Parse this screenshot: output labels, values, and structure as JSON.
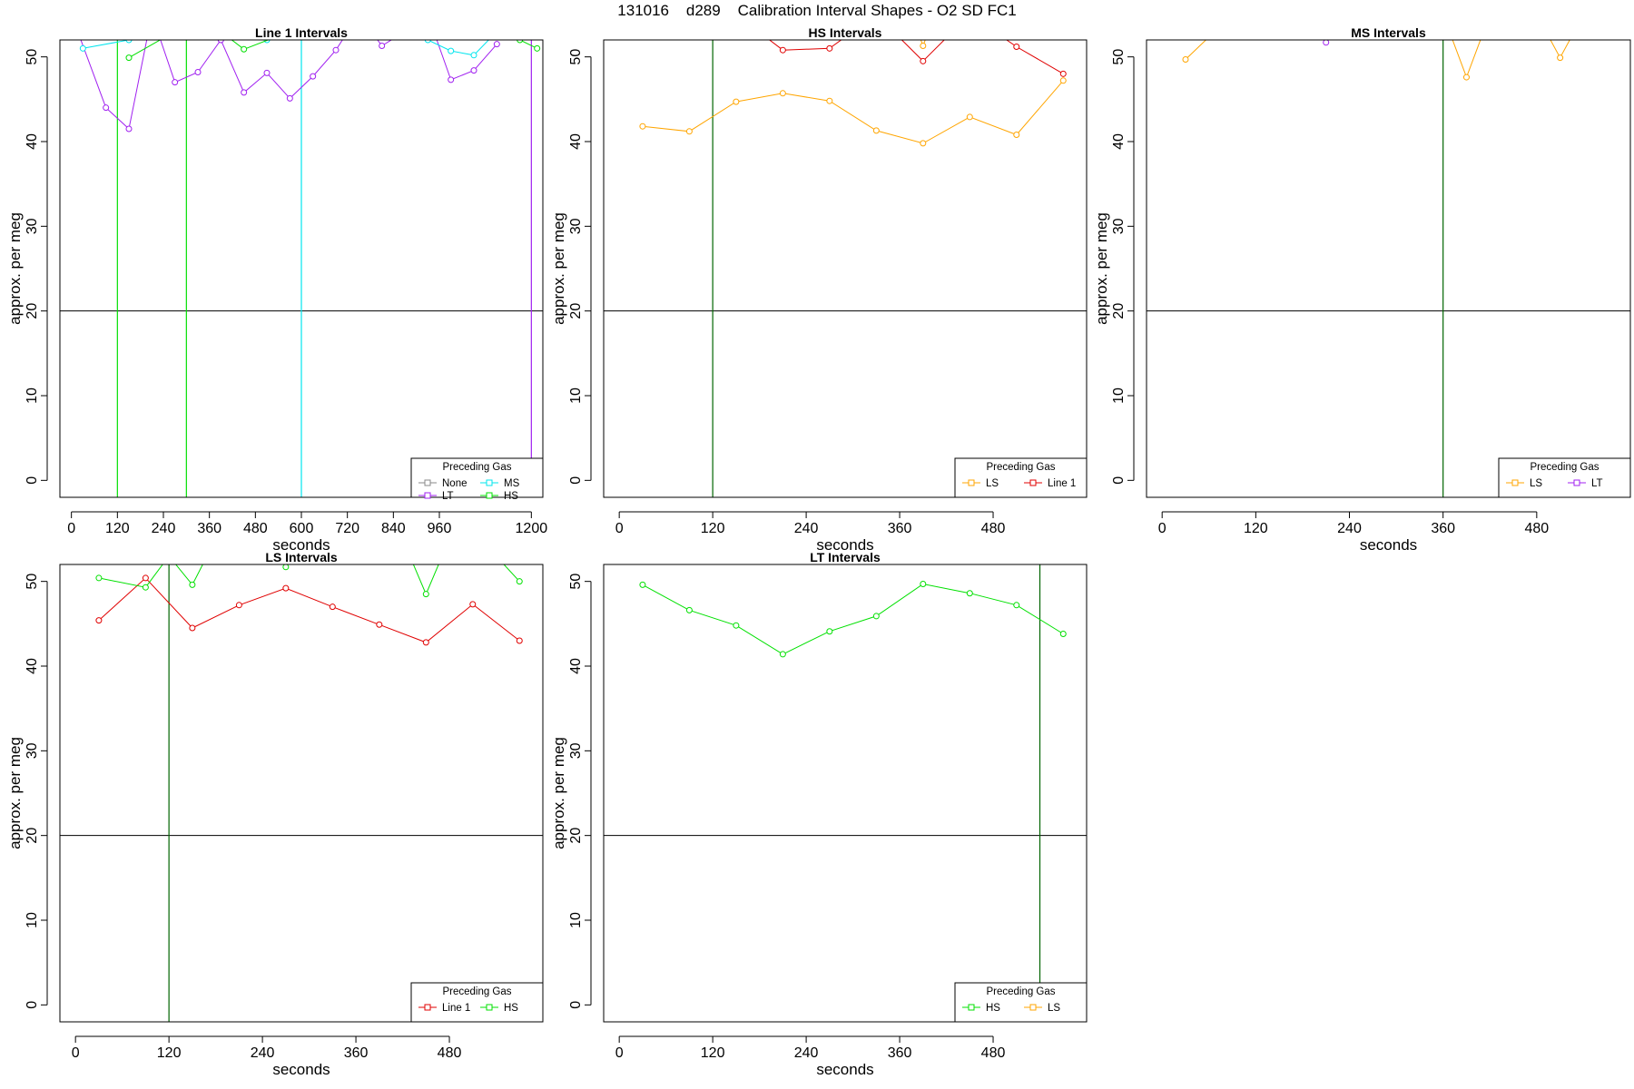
{
  "page_title": "131016    d289    Calibration Interval Shapes - O2 SD FC1",
  "colors": {
    "None": "#888888",
    "LT": "#a020f0",
    "MS": "#00e5ee",
    "HS": "#00e000",
    "LS": "#ffa500",
    "Line 1": "#e00000",
    "vline": "#006400",
    "hline": "#000000"
  },
  "chart_data": [
    {
      "type": "line",
      "title": "Line 1 Intervals",
      "xlabel": "seconds",
      "ylabel": "approx. per meg",
      "xlim": [
        -30,
        1230
      ],
      "ylim": [
        -2,
        52
      ],
      "xticks": [
        0,
        120,
        240,
        360,
        480,
        600,
        720,
        840,
        960,
        1200
      ],
      "yticks": [
        0,
        10,
        20,
        30,
        40,
        50
      ],
      "hline": 20,
      "vlines": [
        {
          "x": 120,
          "color": "#00e000"
        },
        {
          "x": 300,
          "color": "#00e000"
        },
        {
          "x": 600,
          "color": "#00e5ee"
        },
        {
          "x": 1200,
          "color": "#a020f0"
        }
      ],
      "legend": {
        "title": "Preceding Gas",
        "position": "bottom-right",
        "columns": 2,
        "entries": [
          "None",
          "MS",
          "LT",
          "HS"
        ]
      },
      "series": [
        {
          "name": "LT",
          "x": [
            0,
            90,
            150,
            210,
            270,
            330,
            390,
            450,
            510,
            570,
            630,
            690,
            750,
            810,
            870,
            930,
            990,
            1050,
            1110
          ],
          "y": [
            55,
            44,
            41.5,
            55,
            47,
            48.2,
            52,
            45.8,
            48.1,
            45.1,
            47.7,
            50.8,
            55,
            51.3,
            53,
            55,
            47.3,
            48.4,
            51.5
          ]
        },
        {
          "name": "MS",
          "x": [
            30,
            150,
            270,
            390,
            510,
            630,
            750,
            870,
            930,
            990,
            1050,
            1110
          ],
          "y": [
            51,
            52,
            53,
            54,
            52,
            53,
            54,
            53,
            52,
            50.7,
            50.2,
            53
          ]
        },
        {
          "name": "HS",
          "x": [
            150,
            270,
            390,
            450,
            570,
            690,
            810,
            930,
            1170,
            1215
          ],
          "y": [
            49.9,
            53,
            53,
            50.9,
            53,
            53,
            53,
            53,
            52,
            51
          ]
        }
      ]
    },
    {
      "type": "line",
      "title": "HS Intervals",
      "xlabel": "seconds",
      "ylabel": "approx. per meg",
      "xlim": [
        -20,
        600
      ],
      "ylim": [
        -2,
        52
      ],
      "xticks": [
        0,
        120,
        240,
        360,
        480
      ],
      "yticks": [
        0,
        10,
        20,
        30,
        40,
        50
      ],
      "hline": 20,
      "vlines": [
        {
          "x": 120,
          "color": "#006400"
        }
      ],
      "legend": {
        "title": "Preceding Gas",
        "position": "bottom-right",
        "columns": 2,
        "entries": [
          "LS",
          "Line 1"
        ]
      },
      "series": [
        {
          "name": "LS",
          "x": [
            30,
            90,
            150,
            210,
            270,
            330,
            390,
            450,
            510,
            570
          ],
          "y": [
            41.8,
            41.2,
            44.7,
            45.7,
            44.8,
            41.3,
            39.8,
            42.9,
            40.8,
            47.2
          ]
        },
        {
          "name": "Line 1",
          "x": [
            90,
            150,
            210,
            270,
            330,
            390,
            450,
            510,
            570
          ],
          "y": [
            55,
            55,
            50.8,
            51,
            55,
            49.5,
            55,
            51.2,
            48
          ]
        },
        {
          "name": "LS",
          "x": [
            375,
            390,
            405
          ],
          "y": [
            55,
            51.3,
            55
          ]
        }
      ]
    },
    {
      "type": "line",
      "title": "MS Intervals",
      "xlabel": "seconds",
      "ylabel": "approx. per meg",
      "xlim": [
        -20,
        600
      ],
      "ylim": [
        -2,
        52
      ],
      "xticks": [
        0,
        120,
        240,
        360,
        480
      ],
      "yticks": [
        0,
        10,
        20,
        30,
        40,
        50
      ],
      "hline": 20,
      "vlines": [
        {
          "x": 360,
          "color": "#006400"
        }
      ],
      "legend": {
        "title": "Preceding Gas",
        "position": "bottom-right",
        "columns": 2,
        "entries": [
          "LS",
          "LT"
        ]
      },
      "series": [
        {
          "name": "LS",
          "x": [
            30,
            90
          ],
          "y": [
            49.7,
            55
          ]
        },
        {
          "name": "LS",
          "x": [
            360,
            390,
            420
          ],
          "y": [
            55,
            47.6,
            55
          ]
        },
        {
          "name": "LS",
          "x": [
            480,
            510,
            540
          ],
          "y": [
            55,
            49.9,
            55
          ]
        },
        {
          "name": "LT",
          "x": [
            210
          ],
          "y": [
            51.7
          ]
        }
      ]
    },
    {
      "type": "line",
      "title": "LS Intervals",
      "xlabel": "seconds",
      "ylabel": "approx. per meg",
      "xlim": [
        -20,
        600
      ],
      "ylim": [
        -2,
        52
      ],
      "xticks": [
        0,
        120,
        240,
        360,
        480
      ],
      "yticks": [
        0,
        10,
        20,
        30,
        40,
        50
      ],
      "hline": 20,
      "vlines": [
        {
          "x": 120,
          "color": "#006400"
        }
      ],
      "legend": {
        "title": "Preceding Gas",
        "position": "bottom-right",
        "columns": 2,
        "entries": [
          "Line 1",
          "HS"
        ]
      },
      "series": [
        {
          "name": "Line 1",
          "x": [
            30,
            90,
            150,
            210,
            270,
            330,
            390,
            450,
            510,
            570
          ],
          "y": [
            45.4,
            50.4,
            44.5,
            47.2,
            49.2,
            47,
            44.9,
            42.8,
            47.3,
            43
          ]
        },
        {
          "name": "HS",
          "x": [
            30,
            90,
            120,
            150,
            180
          ],
          "y": [
            50.4,
            49.3,
            53,
            49.6,
            55
          ]
        },
        {
          "name": "HS",
          "x": [
            270
          ],
          "y": [
            51.7
          ]
        },
        {
          "name": "HS",
          "x": [
            420,
            450,
            480
          ],
          "y": [
            55,
            48.5,
            55
          ]
        },
        {
          "name": "HS",
          "x": [
            540,
            570
          ],
          "y": [
            53,
            50
          ]
        }
      ]
    },
    {
      "type": "line",
      "title": "LT Intervals",
      "xlabel": "seconds",
      "ylabel": "approx. per meg",
      "xlim": [
        -20,
        600
      ],
      "ylim": [
        -2,
        52
      ],
      "xticks": [
        0,
        120,
        240,
        360,
        480
      ],
      "yticks": [
        0,
        10,
        20,
        30,
        40,
        50
      ],
      "hline": 20,
      "vlines": [
        {
          "x": 540,
          "color": "#006400"
        }
      ],
      "legend": {
        "title": "Preceding Gas",
        "position": "bottom-right",
        "columns": 2,
        "entries": [
          "HS",
          "LS"
        ]
      },
      "series": [
        {
          "name": "HS",
          "x": [
            30,
            90,
            150,
            210,
            270,
            330,
            390,
            450,
            510,
            570
          ],
          "y": [
            49.6,
            46.6,
            44.8,
            41.4,
            44.1,
            45.9,
            49.7,
            48.6,
            47.2,
            43.8
          ]
        }
      ]
    }
  ]
}
